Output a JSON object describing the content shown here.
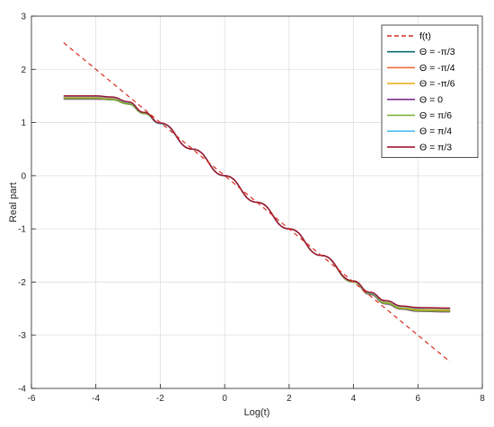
{
  "chart_data": {
    "type": "line",
    "title": "",
    "xlabel": "Log(t)",
    "ylabel": "Real part",
    "xlim": [
      -6,
      8
    ],
    "ylim": [
      -4,
      3
    ],
    "xticks": [
      "-6",
      "-4",
      "-2",
      "0",
      "2",
      "4",
      "6",
      "8"
    ],
    "yticks": [
      "3",
      "2",
      "1",
      "0",
      "-1",
      "-2",
      "-3",
      "-4"
    ],
    "grid": true,
    "legend_position": "top-right",
    "series": [
      {
        "name": "f(t)",
        "style": "dashed",
        "color": "#d62b1e",
        "x": [
          -5,
          7
        ],
        "y": [
          2.5,
          -3.5
        ]
      },
      {
        "name": "Θ = -π/3",
        "color": "#0b6b72",
        "x": [
          -5,
          -4,
          -3.5,
          -3,
          -2.5,
          -2,
          -1,
          0,
          1,
          2,
          3,
          4,
          4.5,
          5,
          5.5,
          6,
          7
        ],
        "y": [
          1.46,
          1.46,
          1.44,
          1.35,
          1.17,
          0.98,
          0.5,
          0,
          -0.5,
          -1,
          -1.5,
          -1.99,
          -2.21,
          -2.38,
          -2.47,
          -2.51,
          -2.54
        ]
      },
      {
        "name": "Θ = -π/4",
        "color": "#f26a3c",
        "x": [
          -5,
          -4,
          -3.5,
          -3,
          -2.5,
          -2,
          -1,
          0,
          1,
          2,
          3,
          4,
          4.5,
          5,
          5.5,
          6,
          7
        ],
        "y": [
          1.47,
          1.47,
          1.45,
          1.36,
          1.18,
          0.98,
          0.5,
          0,
          -0.5,
          -1,
          -1.5,
          -1.99,
          -2.21,
          -2.38,
          -2.48,
          -2.52,
          -2.53
        ]
      },
      {
        "name": "Θ = -π/6",
        "color": "#edb120",
        "x": [
          -5,
          -4,
          -3.5,
          -3,
          -2.5,
          -2,
          -1,
          0,
          1,
          2,
          3,
          4,
          4.5,
          5,
          5.5,
          6,
          7
        ],
        "y": [
          1.48,
          1.48,
          1.46,
          1.37,
          1.18,
          0.98,
          0.5,
          0,
          -0.5,
          -1,
          -1.5,
          -1.99,
          -2.21,
          -2.38,
          -2.48,
          -2.52,
          -2.52
        ]
      },
      {
        "name": "Θ = 0",
        "color": "#7e2f8e",
        "x": [
          -5,
          -4,
          -3.5,
          -3,
          -2.5,
          -2,
          -1,
          0,
          1,
          2,
          3,
          4,
          4.5,
          5,
          5.5,
          6,
          7
        ],
        "y": [
          1.44,
          1.44,
          1.43,
          1.35,
          1.17,
          0.98,
          0.5,
          0,
          -0.5,
          -1,
          -1.5,
          -2,
          -2.23,
          -2.41,
          -2.51,
          -2.55,
          -2.56
        ]
      },
      {
        "name": "Θ = π/6",
        "color": "#77ac30",
        "x": [
          -5,
          -4,
          -3.5,
          -3,
          -2.5,
          -2,
          -1,
          0,
          1,
          2,
          3,
          4,
          4.5,
          5,
          5.5,
          6,
          7
        ],
        "y": [
          1.45,
          1.45,
          1.43,
          1.35,
          1.17,
          0.98,
          0.5,
          0,
          -0.5,
          -1,
          -1.5,
          -2,
          -2.22,
          -2.4,
          -2.5,
          -2.54,
          -2.55
        ]
      },
      {
        "name": "Θ = π/4",
        "color": "#4dbeee",
        "x": [
          -5,
          -4,
          -3.5,
          -3,
          -2.5,
          -2,
          -1,
          0,
          1,
          2,
          3,
          4,
          4.5,
          5,
          5.5,
          6,
          7
        ],
        "y": [
          1.49,
          1.49,
          1.47,
          1.38,
          1.19,
          0.98,
          0.5,
          0,
          -0.5,
          -1,
          -1.5,
          -1.98,
          -2.2,
          -2.36,
          -2.46,
          -2.49,
          -2.5
        ]
      },
      {
        "name": "Θ = π/3",
        "color": "#a2142f",
        "x": [
          -5,
          -4,
          -3.5,
          -3,
          -2.5,
          -2,
          -1,
          0,
          1,
          2,
          3,
          4,
          4.5,
          5,
          5.5,
          6,
          7
        ],
        "y": [
          1.5,
          1.5,
          1.48,
          1.39,
          1.19,
          0.99,
          0.5,
          0,
          -0.5,
          -1,
          -1.5,
          -1.98,
          -2.19,
          -2.35,
          -2.45,
          -2.48,
          -2.49
        ]
      }
    ]
  }
}
